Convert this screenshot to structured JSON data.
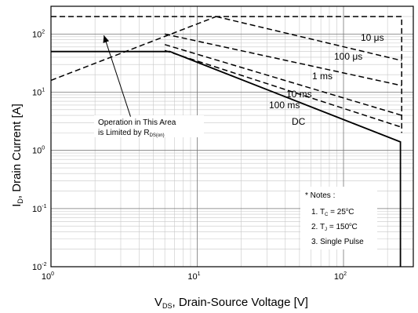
{
  "chart_data": {
    "type": "line",
    "title": "",
    "xlabel": {
      "main": "V",
      "sub": "DS",
      "rest": ", Drain-Source Voltage [V]"
    },
    "ylabel": {
      "main": "I",
      "sub": "D",
      "rest": ", Drain Current [A]"
    },
    "x_scale": "log",
    "y_scale": "log",
    "xlim": [
      1,
      300
    ],
    "ylim": [
      0.01,
      300
    ],
    "grid": true,
    "x_ticks": [
      {
        "value": 1,
        "base": "10",
        "exp": "0"
      },
      {
        "value": 10,
        "base": "10",
        "exp": "1"
      },
      {
        "value": 100,
        "base": "10",
        "exp": "2"
      }
    ],
    "y_ticks": [
      {
        "value": 0.01,
        "base": "10",
        "exp": "-2"
      },
      {
        "value": 0.1,
        "base": "10",
        "exp": "-1"
      },
      {
        "value": 1,
        "base": "10",
        "exp": "0"
      },
      {
        "value": 10,
        "base": "10",
        "exp": "1"
      },
      {
        "value": 100,
        "base": "10",
        "exp": "2"
      }
    ],
    "series": [
      {
        "name": "10 µs",
        "style": "dashed",
        "x": [
          1,
          42,
          250,
          250
        ],
        "y": [
          200,
          200,
          200,
          2
        ]
      },
      {
        "name": "100 µs",
        "style": "dashed",
        "x": [
          13.5,
          250
        ],
        "y": [
          200,
          35
        ]
      },
      {
        "name": "1 ms",
        "style": "dashed",
        "x": [
          6,
          250
        ],
        "y": [
          100,
          13
        ]
      },
      {
        "name": "10 ms",
        "style": "dashed",
        "x": [
          6,
          250
        ],
        "y": [
          66,
          4
        ]
      },
      {
        "name": "100 ms",
        "style": "dashed",
        "x": [
          6,
          250
        ],
        "y": [
          52,
          2.5
        ]
      },
      {
        "name": "DC",
        "style": "solid",
        "x": [
          1,
          6.5,
          245,
          245
        ],
        "y": [
          50,
          50,
          1.4,
          0.01
        ]
      },
      {
        "name": "",
        "style": "dashed",
        "x": [
          1,
          13.5
        ],
        "y": [
          16,
          200
        ]
      }
    ],
    "annotations": {
      "area_line1": "Operation in This Area",
      "area_line2_main": "is Limited by R",
      "area_line2_sub": "DS(on)",
      "arrow_from": [
        3.5,
        3.8
      ],
      "arrow_to": [
        2.3,
        95
      ],
      "notes_title": "* Notes :",
      "note1": {
        "main": "1. T",
        "sub": "C",
        "rest": " = 25",
        "sup": "o",
        "unit": "C"
      },
      "note2": {
        "main": "2. T",
        "sub": "J",
        "rest": " = 150",
        "sup": "o",
        "unit": "C"
      },
      "note3": "3. Single Pulse"
    },
    "curve_labels": {
      "us10": "10 μs",
      "us100": "100 μs",
      "ms1": "1 ms",
      "ms10": "10 ms",
      "ms100": "100 ms",
      "dc": "DC"
    }
  }
}
